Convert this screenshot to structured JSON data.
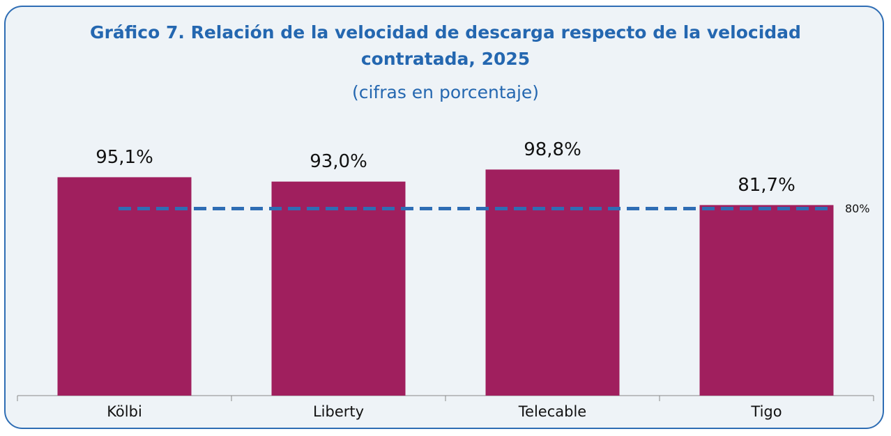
{
  "chart_data": {
    "type": "bar",
    "title": "Gráfico 7. Relación de la velocidad de descarga respecto de la velocidad contratada, 2025",
    "subtitle": "(cifras en porcentaje)",
    "categories": [
      "Kölbi",
      "Liberty",
      "Telecable",
      "Tigo"
    ],
    "values": [
      95.1,
      93.0,
      98.8,
      81.7
    ],
    "value_labels": [
      "95,1%",
      "93,0%",
      "98,8%",
      "81,7%"
    ],
    "color": "#a01f5e",
    "ylim": [
      -10,
      110
    ],
    "reference_line": {
      "value": 80,
      "label": "80%",
      "color": "#2e6db4"
    }
  }
}
